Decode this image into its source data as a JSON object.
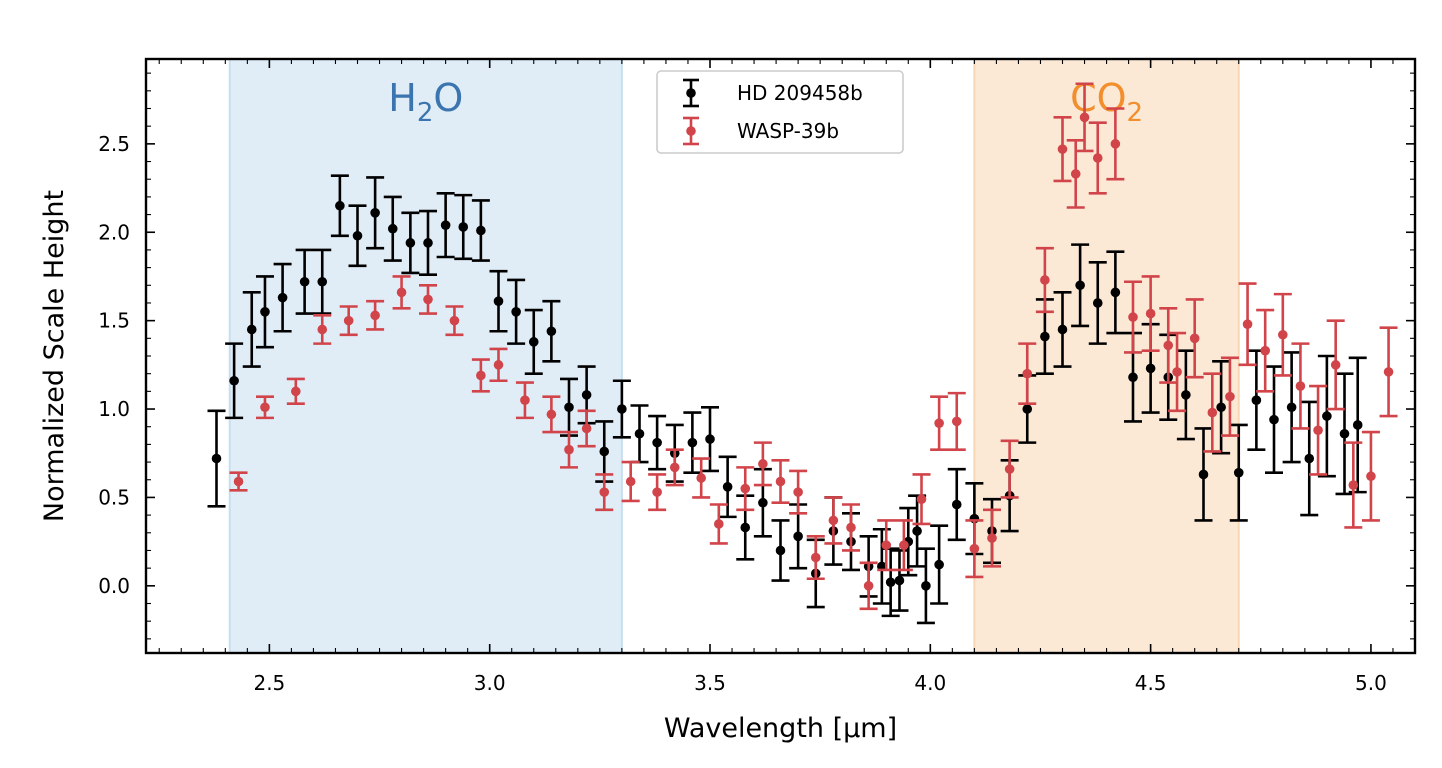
{
  "chart_data": {
    "type": "scatter",
    "xlabel": "Wavelength [μm]",
    "ylabel": "Normalized Scale Height",
    "xlim": [
      2.22,
      5.1
    ],
    "ylim": [
      -0.38,
      2.98
    ],
    "x_ticks": [
      2.5,
      3.0,
      3.5,
      4.0,
      4.5,
      5.0
    ],
    "x_tick_labels": [
      "2.5",
      "3.0",
      "3.5",
      "4.0",
      "4.5",
      "5.0"
    ],
    "y_ticks": [
      0.0,
      0.5,
      1.0,
      1.5,
      2.0,
      2.5
    ],
    "y_tick_labels": [
      "0.0",
      "0.5",
      "1.0",
      "1.5",
      "2.0",
      "2.5"
    ],
    "grid": false,
    "legend_position": "top-center",
    "bands": [
      {
        "label_main": "H",
        "label_sub": "2",
        "label_tail": "O",
        "x_range": [
          2.41,
          3.3
        ],
        "color": "#c6dff0",
        "label_color": "#3b75af"
      },
      {
        "label_main": "CO",
        "label_sub": "2",
        "label_tail": "",
        "x_range": [
          4.1,
          4.7
        ],
        "color": "#f8d7b5",
        "label_color": "#f28e2b"
      }
    ],
    "series": [
      {
        "name": "HD 209458b",
        "color": "#000000",
        "points": [
          [
            2.38,
            0.72,
            0.27
          ],
          [
            2.42,
            1.16,
            0.21
          ],
          [
            2.46,
            1.45,
            0.21
          ],
          [
            2.49,
            1.55,
            0.2
          ],
          [
            2.53,
            1.63,
            0.19
          ],
          [
            2.58,
            1.72,
            0.18
          ],
          [
            2.62,
            1.72,
            0.18
          ],
          [
            2.66,
            2.15,
            0.17
          ],
          [
            2.7,
            1.98,
            0.17
          ],
          [
            2.74,
            2.11,
            0.2
          ],
          [
            2.78,
            2.02,
            0.18
          ],
          [
            2.82,
            1.94,
            0.17
          ],
          [
            2.86,
            1.94,
            0.18
          ],
          [
            2.9,
            2.04,
            0.18
          ],
          [
            2.94,
            2.03,
            0.18
          ],
          [
            2.98,
            2.01,
            0.17
          ],
          [
            3.02,
            1.61,
            0.17
          ],
          [
            3.06,
            1.55,
            0.18
          ],
          [
            3.1,
            1.38,
            0.18
          ],
          [
            3.14,
            1.44,
            0.17
          ],
          [
            3.18,
            1.01,
            0.16
          ],
          [
            3.22,
            1.08,
            0.16
          ],
          [
            3.26,
            0.76,
            0.17
          ],
          [
            3.3,
            1.0,
            0.16
          ],
          [
            3.34,
            0.86,
            0.16
          ],
          [
            3.38,
            0.81,
            0.15
          ],
          [
            3.42,
            0.75,
            0.16
          ],
          [
            3.46,
            0.81,
            0.17
          ],
          [
            3.5,
            0.83,
            0.18
          ],
          [
            3.54,
            0.56,
            0.17
          ],
          [
            3.58,
            0.33,
            0.18
          ],
          [
            3.62,
            0.47,
            0.19
          ],
          [
            3.66,
            0.2,
            0.17
          ],
          [
            3.7,
            0.28,
            0.18
          ],
          [
            3.74,
            0.07,
            0.19
          ],
          [
            3.78,
            0.31,
            0.19
          ],
          [
            3.82,
            0.25,
            0.16
          ],
          [
            3.86,
            0.11,
            0.17
          ],
          [
            3.89,
            0.11,
            0.21
          ],
          [
            3.91,
            0.02,
            0.19
          ],
          [
            3.93,
            0.03,
            0.17
          ],
          [
            3.95,
            0.25,
            0.19
          ],
          [
            3.97,
            0.31,
            0.2
          ],
          [
            3.99,
            0.0,
            0.21
          ],
          [
            4.02,
            0.12,
            0.22
          ],
          [
            4.06,
            0.46,
            0.2
          ],
          [
            4.1,
            0.38,
            0.2
          ],
          [
            4.14,
            0.31,
            0.18
          ],
          [
            4.18,
            0.51,
            0.2
          ],
          [
            4.22,
            1.0,
            0.19
          ],
          [
            4.26,
            1.41,
            0.21
          ],
          [
            4.3,
            1.45,
            0.21
          ],
          [
            4.34,
            1.7,
            0.23
          ],
          [
            4.38,
            1.6,
            0.23
          ],
          [
            4.42,
            1.66,
            0.23
          ],
          [
            4.46,
            1.18,
            0.25
          ],
          [
            4.5,
            1.23,
            0.25
          ],
          [
            4.54,
            1.18,
            0.24
          ],
          [
            4.58,
            1.08,
            0.25
          ],
          [
            4.62,
            0.63,
            0.26
          ],
          [
            4.66,
            1.01,
            0.26
          ],
          [
            4.7,
            0.64,
            0.27
          ],
          [
            4.74,
            1.05,
            0.28
          ],
          [
            4.78,
            0.94,
            0.3
          ],
          [
            4.82,
            1.01,
            0.31
          ],
          [
            4.86,
            0.72,
            0.32
          ],
          [
            4.9,
            0.96,
            0.34
          ],
          [
            4.94,
            0.86,
            0.34
          ],
          [
            4.97,
            0.91,
            0.38
          ]
        ]
      },
      {
        "name": "WASP-39b",
        "color": "#d1444a",
        "points": [
          [
            2.43,
            0.59,
            0.05
          ],
          [
            2.49,
            1.01,
            0.06
          ],
          [
            2.56,
            1.1,
            0.07
          ],
          [
            2.62,
            1.45,
            0.08
          ],
          [
            2.68,
            1.5,
            0.08
          ],
          [
            2.74,
            1.53,
            0.08
          ],
          [
            2.8,
            1.66,
            0.09
          ],
          [
            2.86,
            1.62,
            0.08
          ],
          [
            2.92,
            1.5,
            0.08
          ],
          [
            2.98,
            1.19,
            0.09
          ],
          [
            3.02,
            1.25,
            0.09
          ],
          [
            3.08,
            1.05,
            0.1
          ],
          [
            3.14,
            0.97,
            0.1
          ],
          [
            3.18,
            0.77,
            0.1
          ],
          [
            3.22,
            0.89,
            0.1
          ],
          [
            3.26,
            0.53,
            0.1
          ],
          [
            3.32,
            0.59,
            0.11
          ],
          [
            3.38,
            0.53,
            0.1
          ],
          [
            3.42,
            0.67,
            0.1
          ],
          [
            3.48,
            0.61,
            0.11
          ],
          [
            3.52,
            0.35,
            0.11
          ],
          [
            3.58,
            0.55,
            0.12
          ],
          [
            3.62,
            0.69,
            0.12
          ],
          [
            3.66,
            0.59,
            0.12
          ],
          [
            3.7,
            0.53,
            0.12
          ],
          [
            3.74,
            0.16,
            0.12
          ],
          [
            3.78,
            0.37,
            0.13
          ],
          [
            3.82,
            0.33,
            0.13
          ],
          [
            3.86,
            0.0,
            0.13
          ],
          [
            3.9,
            0.23,
            0.14
          ],
          [
            3.94,
            0.23,
            0.14
          ],
          [
            3.98,
            0.49,
            0.14
          ],
          [
            4.02,
            0.92,
            0.15
          ],
          [
            4.06,
            0.93,
            0.16
          ],
          [
            4.1,
            0.21,
            0.16
          ],
          [
            4.14,
            0.27,
            0.16
          ],
          [
            4.18,
            0.66,
            0.16
          ],
          [
            4.22,
            1.2,
            0.17
          ],
          [
            4.26,
            1.73,
            0.18
          ],
          [
            4.3,
            2.47,
            0.18
          ],
          [
            4.33,
            2.33,
            0.19
          ],
          [
            4.35,
            2.65,
            0.19
          ],
          [
            4.38,
            2.42,
            0.2
          ],
          [
            4.42,
            2.5,
            0.2
          ],
          [
            4.46,
            1.52,
            0.2
          ],
          [
            4.5,
            1.54,
            0.21
          ],
          [
            4.54,
            1.36,
            0.21
          ],
          [
            4.56,
            1.21,
            0.22
          ],
          [
            4.6,
            1.4,
            0.22
          ],
          [
            4.64,
            0.98,
            0.22
          ],
          [
            4.68,
            1.07,
            0.22
          ],
          [
            4.72,
            1.48,
            0.23
          ],
          [
            4.76,
            1.33,
            0.23
          ],
          [
            4.8,
            1.42,
            0.23
          ],
          [
            4.84,
            1.13,
            0.24
          ],
          [
            4.88,
            0.88,
            0.25
          ],
          [
            4.92,
            1.25,
            0.25
          ],
          [
            4.96,
            0.57,
            0.24
          ],
          [
            5.0,
            0.62,
            0.25
          ],
          [
            5.04,
            1.21,
            0.25
          ]
        ]
      }
    ]
  }
}
